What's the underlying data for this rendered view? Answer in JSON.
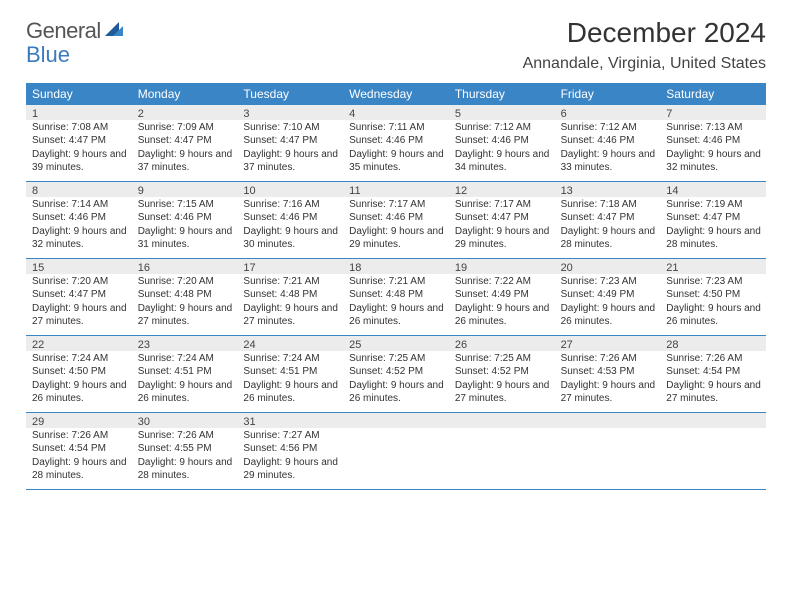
{
  "logo": {
    "text1": "General",
    "text2": "Blue",
    "color1": "#555555",
    "color2": "#3a7bbf"
  },
  "title": "December 2024",
  "location": "Annandale, Virginia, United States",
  "colors": {
    "header_bg": "#3a85c6",
    "header_text": "#ffffff",
    "daynum_bg": "#ececec",
    "rule": "#3a85c6",
    "text": "#333333"
  },
  "layout": {
    "cols": 7,
    "rows": 5
  },
  "day_headers": [
    "Sunday",
    "Monday",
    "Tuesday",
    "Wednesday",
    "Thursday",
    "Friday",
    "Saturday"
  ],
  "days": [
    {
      "n": "1",
      "sunrise": "7:08 AM",
      "sunset": "4:47 PM",
      "dh": 9,
      "dm": 39
    },
    {
      "n": "2",
      "sunrise": "7:09 AM",
      "sunset": "4:47 PM",
      "dh": 9,
      "dm": 37
    },
    {
      "n": "3",
      "sunrise": "7:10 AM",
      "sunset": "4:47 PM",
      "dh": 9,
      "dm": 37
    },
    {
      "n": "4",
      "sunrise": "7:11 AM",
      "sunset": "4:46 PM",
      "dh": 9,
      "dm": 35
    },
    {
      "n": "5",
      "sunrise": "7:12 AM",
      "sunset": "4:46 PM",
      "dh": 9,
      "dm": 34
    },
    {
      "n": "6",
      "sunrise": "7:12 AM",
      "sunset": "4:46 PM",
      "dh": 9,
      "dm": 33
    },
    {
      "n": "7",
      "sunrise": "7:13 AM",
      "sunset": "4:46 PM",
      "dh": 9,
      "dm": 32
    },
    {
      "n": "8",
      "sunrise": "7:14 AM",
      "sunset": "4:46 PM",
      "dh": 9,
      "dm": 32
    },
    {
      "n": "9",
      "sunrise": "7:15 AM",
      "sunset": "4:46 PM",
      "dh": 9,
      "dm": 31
    },
    {
      "n": "10",
      "sunrise": "7:16 AM",
      "sunset": "4:46 PM",
      "dh": 9,
      "dm": 30
    },
    {
      "n": "11",
      "sunrise": "7:17 AM",
      "sunset": "4:46 PM",
      "dh": 9,
      "dm": 29
    },
    {
      "n": "12",
      "sunrise": "7:17 AM",
      "sunset": "4:47 PM",
      "dh": 9,
      "dm": 29
    },
    {
      "n": "13",
      "sunrise": "7:18 AM",
      "sunset": "4:47 PM",
      "dh": 9,
      "dm": 28
    },
    {
      "n": "14",
      "sunrise": "7:19 AM",
      "sunset": "4:47 PM",
      "dh": 9,
      "dm": 28
    },
    {
      "n": "15",
      "sunrise": "7:20 AM",
      "sunset": "4:47 PM",
      "dh": 9,
      "dm": 27
    },
    {
      "n": "16",
      "sunrise": "7:20 AM",
      "sunset": "4:48 PM",
      "dh": 9,
      "dm": 27
    },
    {
      "n": "17",
      "sunrise": "7:21 AM",
      "sunset": "4:48 PM",
      "dh": 9,
      "dm": 27
    },
    {
      "n": "18",
      "sunrise": "7:21 AM",
      "sunset": "4:48 PM",
      "dh": 9,
      "dm": 26
    },
    {
      "n": "19",
      "sunrise": "7:22 AM",
      "sunset": "4:49 PM",
      "dh": 9,
      "dm": 26
    },
    {
      "n": "20",
      "sunrise": "7:23 AM",
      "sunset": "4:49 PM",
      "dh": 9,
      "dm": 26
    },
    {
      "n": "21",
      "sunrise": "7:23 AM",
      "sunset": "4:50 PM",
      "dh": 9,
      "dm": 26
    },
    {
      "n": "22",
      "sunrise": "7:24 AM",
      "sunset": "4:50 PM",
      "dh": 9,
      "dm": 26
    },
    {
      "n": "23",
      "sunrise": "7:24 AM",
      "sunset": "4:51 PM",
      "dh": 9,
      "dm": 26
    },
    {
      "n": "24",
      "sunrise": "7:24 AM",
      "sunset": "4:51 PM",
      "dh": 9,
      "dm": 26
    },
    {
      "n": "25",
      "sunrise": "7:25 AM",
      "sunset": "4:52 PM",
      "dh": 9,
      "dm": 26
    },
    {
      "n": "26",
      "sunrise": "7:25 AM",
      "sunset": "4:52 PM",
      "dh": 9,
      "dm": 27
    },
    {
      "n": "27",
      "sunrise": "7:26 AM",
      "sunset": "4:53 PM",
      "dh": 9,
      "dm": 27
    },
    {
      "n": "28",
      "sunrise": "7:26 AM",
      "sunset": "4:54 PM",
      "dh": 9,
      "dm": 27
    },
    {
      "n": "29",
      "sunrise": "7:26 AM",
      "sunset": "4:54 PM",
      "dh": 9,
      "dm": 28
    },
    {
      "n": "30",
      "sunrise": "7:26 AM",
      "sunset": "4:55 PM",
      "dh": 9,
      "dm": 28
    },
    {
      "n": "31",
      "sunrise": "7:27 AM",
      "sunset": "4:56 PM",
      "dh": 9,
      "dm": 29
    }
  ]
}
